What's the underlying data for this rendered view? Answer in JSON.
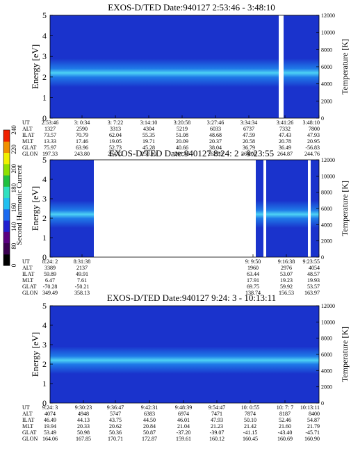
{
  "chart_data": [
    {
      "type": "heatmap",
      "title": "EXOS-D/TED   Date:940127   2:53:46 - 3:48:10",
      "ylabel": "Energy [eV]",
      "y2label": "Temperature [K]",
      "ylim": [
        0,
        5
      ],
      "y2lim": [
        0,
        12000
      ],
      "yticks": [
        "0",
        "1",
        "2",
        "3",
        "4",
        "5"
      ],
      "y2ticks": [
        "0",
        "2000",
        "4000",
        "6000",
        "8000",
        "10000",
        "12000"
      ],
      "row_labels": [
        "UT",
        "ALT",
        "ILAT",
        "MLT",
        "GLAT",
        "GLON"
      ],
      "columns": [
        [
          "2:53:46",
          "1327",
          "73.57",
          "13.33",
          "75.97",
          "197.33"
        ],
        [
          "3: 0:34",
          "2590",
          "70.79",
          "17.46",
          "63.96",
          "243.80"
        ],
        [
          "3: 7:22",
          "3313",
          "62.04",
          "19.05",
          "52.73",
          "254.72"
        ],
        [
          "3:14:10",
          "4304",
          "55.35",
          "19.71",
          "45.28",
          "259.10"
        ],
        [
          "3:20:58",
          "5219",
          "51.08",
          "20.09",
          "40.66",
          "261.45"
        ],
        [
          "3:27:46",
          "6033",
          "48.68",
          "20.37",
          "38.04",
          "262.93"
        ],
        [
          "3:34:34",
          "6737",
          "47.59",
          "20.58",
          "36.79",
          "264.00"
        ],
        [
          "3:41:26",
          "7332",
          "47.43",
          "20.78",
          "36.49",
          "264.87"
        ],
        [
          "3:48:10",
          "7800",
          "47.93",
          "20.95",
          "-56.83",
          "244.76"
        ]
      ]
    },
    {
      "type": "heatmap",
      "title": "EXOS-D/TED   Date:940127   8:24: 2 - 9:23:55",
      "ylabel": "Energy [eV]",
      "y2label": "Temperature [K]",
      "ylim": [
        0,
        5
      ],
      "y2lim": [
        0,
        12000
      ],
      "yticks": [
        "0",
        "1",
        "2",
        "3",
        "4",
        "5"
      ],
      "y2ticks": [
        "0",
        "2000",
        "4000",
        "6000",
        "8000",
        "10000",
        "12000"
      ],
      "row_labels": [
        "UT",
        "ALT",
        "ILAT",
        "MLT",
        "GLAT",
        "GLON"
      ],
      "columns": [
        [
          "8:24: 2",
          "3389",
          "59.89",
          "6.47",
          "-70.28",
          "349.49"
        ],
        [
          "8:31:38",
          "2137",
          "49.91",
          "7.61",
          "-50.21",
          "358.13"
        ],
        [
          "9: 9:50",
          "1960",
          "63.44",
          "17.91",
          "69.75",
          "138.74"
        ],
        [
          "9:16:38",
          "2976",
          "53.07",
          "19.23",
          "59.92",
          "156.53"
        ],
        [
          "9:23:55",
          "4054",
          "48.57",
          "19.93",
          "53.57",
          "163.97"
        ]
      ]
    },
    {
      "type": "heatmap",
      "title": "EXOS-D/TED   Date:940127   9:24: 3 - 10:13:11",
      "ylabel": "Energy [eV]",
      "y2label": "Temperature [K]",
      "ylim": [
        0,
        5
      ],
      "y2lim": [
        0,
        12000
      ],
      "yticks": [
        "0",
        "1",
        "2",
        "3",
        "4",
        "5"
      ],
      "y2ticks": [
        "0",
        "2000",
        "4000",
        "6000",
        "8000",
        "10000",
        "12000"
      ],
      "row_labels": [
        "UT",
        "ALT",
        "ILAT",
        "MLT",
        "GLAT",
        "GLON"
      ],
      "columns": [
        [
          "9:24: 3",
          "4074",
          "46.49",
          "19.94",
          "53.49",
          "164.06"
        ],
        [
          "9:30:23",
          "4948",
          "44.13",
          "20.33",
          "50.98",
          "167.85"
        ],
        [
          "9:36:47",
          "5747",
          "43.75",
          "20.62",
          "50.36",
          "170.71"
        ],
        [
          "9:42:31",
          "6383",
          "44.50",
          "20.84",
          "50.87",
          "172.87"
        ],
        [
          "9:48:39",
          "6974",
          "46.01",
          "21.04",
          "-37.20",
          "159.61"
        ],
        [
          "9:54:47",
          "7471",
          "47.93",
          "21.23",
          "-39.07",
          "160.12"
        ],
        [
          "10: 0:55",
          "7874",
          "50.10",
          "21.42",
          "-41.15",
          "160.45"
        ],
        [
          "10: 7: 7",
          "8187",
          "52.46",
          "21.60",
          "-43.40",
          "160.69"
        ],
        [
          "10:13:11",
          "8400",
          "54.87",
          "21.79",
          "-45.71",
          "160.90"
        ]
      ]
    }
  ],
  "colorbar": {
    "label": "Second Harmonic Current",
    "ticks": [
      "0",
      "80",
      "140",
      "160",
      "180",
      "200",
      "220",
      "240"
    ],
    "colors": [
      "#000000",
      "#3a0050",
      "#5a0080",
      "#2020d0",
      "#1a6af0",
      "#20c0f0",
      "#30e0c0",
      "#20c040",
      "#90e000",
      "#f0f000",
      "#f09000",
      "#f02000"
    ]
  },
  "colors": {
    "background": "#1a33cc",
    "band": "#2aa6f0",
    "band_core": "#4dd2f5",
    "blank": "#ffffff"
  }
}
